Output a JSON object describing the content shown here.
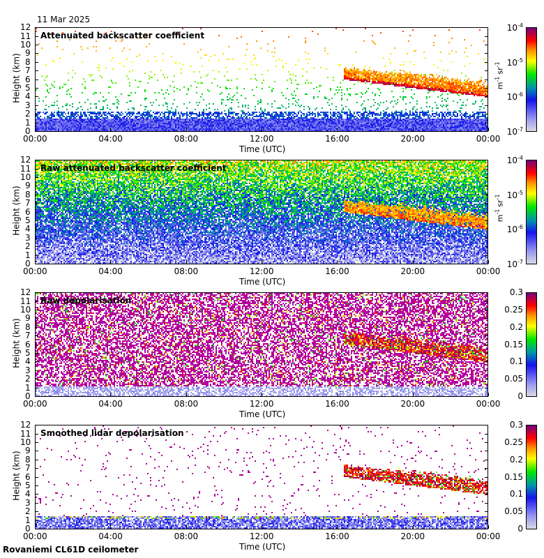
{
  "date": "11 Mar 2025",
  "footer": "Rovaniemi CL61D ceilometer",
  "chart_data": [
    {
      "type": "heatmap",
      "title": "Attenuated backscatter coefficient",
      "xlabel": "Time (UTC)",
      "ylabel": "Height (km)",
      "xticks": [
        "00:00",
        "04:00",
        "08:00",
        "12:00",
        "16:00",
        "20:00",
        "00:00"
      ],
      "yticks": [
        "0",
        "1",
        "2",
        "3",
        "4",
        "5",
        "6",
        "7",
        "8",
        "9",
        "10",
        "11",
        "12"
      ],
      "ylim": [
        0,
        12
      ],
      "colorbar": {
        "scale": "log",
        "ticks": [
          "10",
          "10",
          "10",
          "10"
        ],
        "exponents": [
          "-7",
          "-6",
          "-5",
          "-4"
        ],
        "label": "m-1 sr-1",
        "units": [
          "m",
          "-1",
          "sr",
          "-1"
        ],
        "range": [
          1e-07,
          0.0001
        ]
      },
      "mode": "att"
    },
    {
      "type": "heatmap",
      "title": "Raw attenuated backscatter coefficient",
      "xlabel": "Time (UTC)",
      "ylabel": "Height (km)",
      "xticks": [
        "00:00",
        "04:00",
        "08:00",
        "12:00",
        "16:00",
        "20:00",
        "00:00"
      ],
      "yticks": [
        "0",
        "1",
        "2",
        "3",
        "4",
        "5",
        "6",
        "7",
        "8",
        "9",
        "10",
        "11",
        "12"
      ],
      "ylim": [
        0,
        12
      ],
      "colorbar": {
        "scale": "log",
        "ticks": [
          "10",
          "10",
          "10",
          "10"
        ],
        "exponents": [
          "-7",
          "-6",
          "-5",
          "-4"
        ],
        "label": "m-1 sr-1",
        "units": [
          "m",
          "-1",
          "sr",
          "-1"
        ],
        "range": [
          1e-07,
          0.0001
        ]
      },
      "mode": "raw"
    },
    {
      "type": "heatmap",
      "title": "Raw depolarisation",
      "xlabel": "Time (UTC)",
      "ylabel": "Height (km)",
      "xticks": [
        "00:00",
        "04:00",
        "08:00",
        "12:00",
        "16:00",
        "20:00",
        "00:00"
      ],
      "yticks": [
        "0",
        "1",
        "2",
        "3",
        "4",
        "5",
        "6",
        "7",
        "8",
        "9",
        "10",
        "11",
        "12"
      ],
      "ylim": [
        0,
        12
      ],
      "colorbar": {
        "scale": "linear",
        "ticks": [
          "0",
          "0.05",
          "0.1",
          "0.15",
          "0.2",
          "0.25",
          "0.3"
        ],
        "range": [
          0,
          0.3
        ]
      },
      "mode": "rawdep"
    },
    {
      "type": "heatmap",
      "title": "Smoothed lidar depolarisation",
      "xlabel": "Time (UTC)",
      "ylabel": "Height (km)",
      "xticks": [
        "00:00",
        "04:00",
        "08:00",
        "12:00",
        "16:00",
        "20:00",
        "00:00"
      ],
      "yticks": [
        "0",
        "1",
        "2",
        "3",
        "4",
        "5",
        "6",
        "7",
        "8",
        "9",
        "10",
        "11",
        "12"
      ],
      "ylim": [
        0,
        12
      ],
      "colorbar": {
        "scale": "linear",
        "ticks": [
          "0",
          "0.05",
          "0.1",
          "0.15",
          "0.2",
          "0.25",
          "0.3"
        ],
        "range": [
          0,
          0.3
        ]
      },
      "mode": "smdep"
    }
  ]
}
